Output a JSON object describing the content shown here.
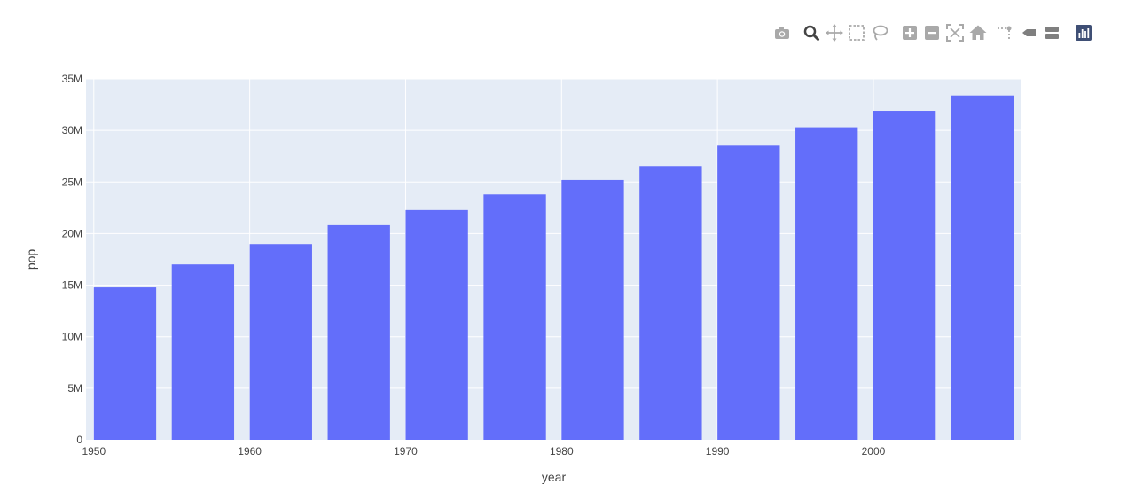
{
  "toolbar": {
    "buttons": [
      {
        "name": "camera-icon",
        "label": "Download plot as a png"
      },
      {
        "name": "zoom-icon",
        "label": "Zoom",
        "active": true
      },
      {
        "name": "pan-icon",
        "label": "Pan"
      },
      {
        "name": "box-select-icon",
        "label": "Box Select"
      },
      {
        "name": "lasso-select-icon",
        "label": "Lasso Select"
      },
      {
        "name": "zoom-in-icon",
        "label": "Zoom in"
      },
      {
        "name": "zoom-out-icon",
        "label": "Zoom out"
      },
      {
        "name": "autoscale-icon",
        "label": "Autoscale"
      },
      {
        "name": "home-icon",
        "label": "Reset axes"
      },
      {
        "name": "spike-lines-icon",
        "label": "Toggle Spike Lines"
      },
      {
        "name": "hover-closest-icon",
        "label": "Show closest data on hover"
      },
      {
        "name": "hover-compare-icon",
        "label": "Compare data on hover"
      },
      {
        "name": "plotly-logo-icon",
        "label": "Produced with Plotly"
      }
    ]
  },
  "colors": {
    "bar": "#636efa",
    "plot_bg": "#e5ecf6",
    "grid": "#ffffff",
    "text": "#444444",
    "icon": "#a9a9a9",
    "icon_active": "#444444",
    "logo": "#3f4f75"
  },
  "chart_data": {
    "type": "bar",
    "title": "",
    "xlabel": "year",
    "ylabel": "pop",
    "x": [
      1952,
      1957,
      1962,
      1967,
      1972,
      1977,
      1982,
      1987,
      1992,
      1997,
      2002,
      2007
    ],
    "values": [
      14785584,
      17010154,
      18985849,
      20819767,
      22284500,
      23796400,
      25201900,
      26549700,
      28523502,
      30305843,
      31902268,
      33390141
    ],
    "xlim": [
      1949.5,
      2009.5
    ],
    "ylim": [
      0,
      35000000
    ],
    "x_ticks": [
      1950,
      1960,
      1970,
      1980,
      1990,
      2000
    ],
    "x_tick_labels": [
      "1950",
      "1960",
      "1970",
      "1980",
      "1990",
      "2000"
    ],
    "y_ticks": [
      0,
      5000000,
      10000000,
      15000000,
      20000000,
      25000000,
      30000000,
      35000000
    ],
    "y_tick_labels": [
      "0",
      "5M",
      "10M",
      "15M",
      "20M",
      "25M",
      "30M",
      "35M"
    ],
    "bar_width_years": 4,
    "grid": true,
    "legend": "none"
  }
}
